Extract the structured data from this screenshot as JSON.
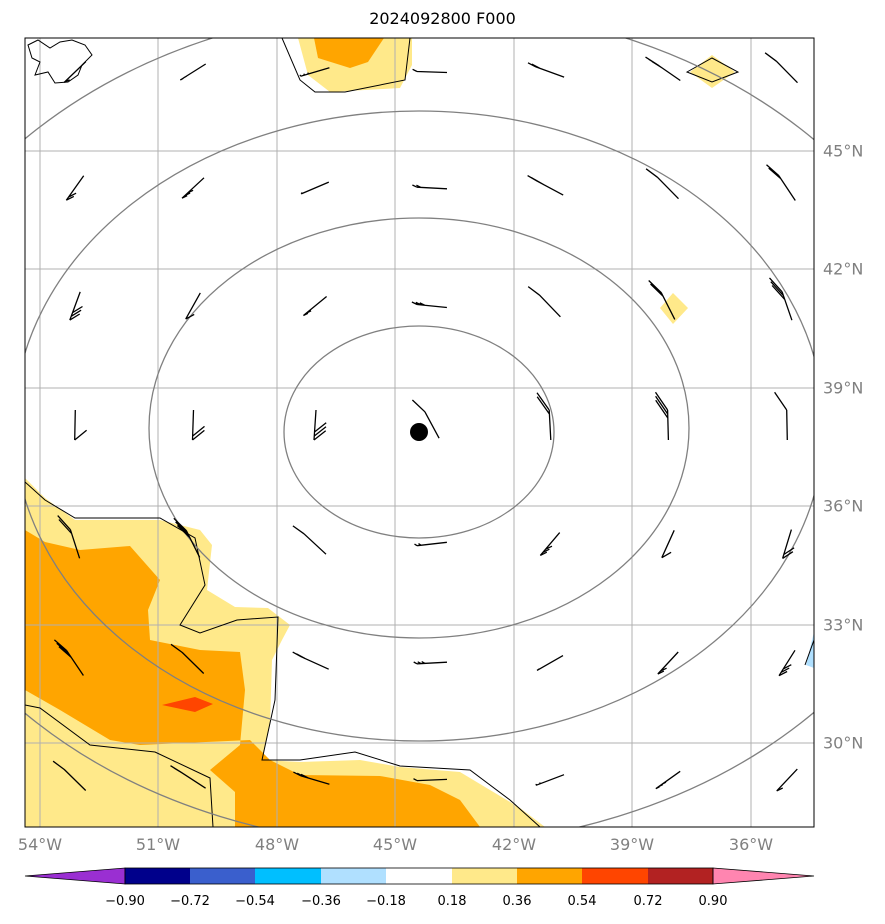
{
  "title": "2024092800 F000",
  "lon_labels": [
    "54°W",
    "51°W",
    "48°W",
    "45°W",
    "42°W",
    "39°W",
    "36°W"
  ],
  "lat_labels": [
    "45°N",
    "42°N",
    "39°N",
    "36°N",
    "33°N",
    "30°N"
  ],
  "colorbar": {
    "ticks": [
      "−0.90",
      "−0.72",
      "−0.54",
      "−0.36",
      "−0.18",
      "0.18",
      "0.36",
      "0.54",
      "0.72",
      "0.90"
    ],
    "colors": [
      "#9a2fd2",
      "#00008b",
      "#3a5fcd",
      "#00bfff",
      "#b0e0ff",
      "#ffffff",
      "#ffe98a",
      "#ffa500",
      "#ff4500",
      "#b22222",
      "#ff85b0"
    ]
  },
  "colors": {
    "grid": "#b0b0b0",
    "isobar": "#808080",
    "coast": "#000000",
    "shade_light": "#ffe98a",
    "shade_mid": "#ffa500",
    "shade_high": "#ff4500",
    "center_marker": "#000000"
  }
}
